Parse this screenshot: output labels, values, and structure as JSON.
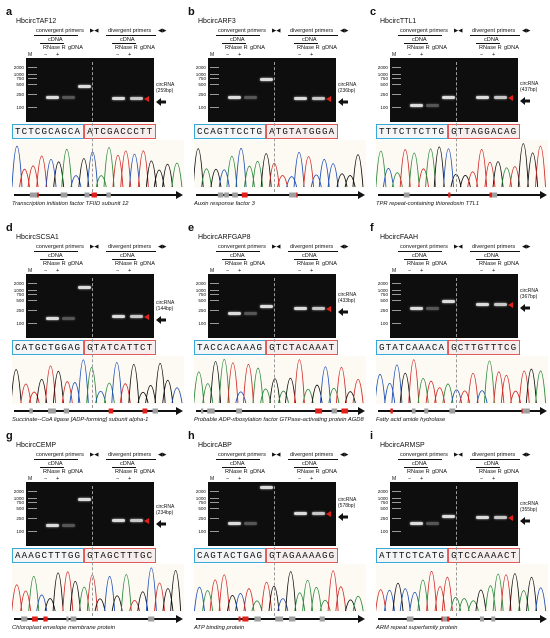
{
  "colors": {
    "accent_red": "#e0201b",
    "box_blue": "#3aa7d5",
    "box_red": "#e05a5a"
  },
  "headers": {
    "convergent": "convergent primers",
    "divergent": "divergent primers",
    "cdna": "cDNA",
    "rnase": "RNase R",
    "gdna": "gDNA",
    "minus": "−",
    "plus": "+",
    "marker": "M"
  },
  "ladder_marks": [
    "2000",
    "1000",
    "750",
    "500",
    "250",
    "100"
  ],
  "panels": [
    {
      "letter": "a",
      "gene": "HbcircTAF12",
      "circ1": "circRNA",
      "circ2": "(259bp)",
      "seq_left": "TCTCGCAGCA",
      "seq_right": "ATCGACCCTT",
      "description": "Transcription initiation factor TFIID subunit 12"
    },
    {
      "letter": "b",
      "gene": "HbcircARF3",
      "circ1": "circRNA",
      "circ2": "(236bp)",
      "seq_left": "CCAGTTCCTG",
      "seq_right": "ATGTATGGGA",
      "description": "Auxin response factor 3"
    },
    {
      "letter": "c",
      "gene": "HbcircTTL1",
      "circ1": "circRNA",
      "circ2": "(437bp)",
      "seq_left": "TTTCTTCTTG",
      "seq_right": "GTTAGGACAG",
      "description": "TPR repeat-containing thioredoxin TTL1"
    },
    {
      "letter": "d",
      "gene": "HbcircSCSA1",
      "circ1": "circRNA",
      "circ2": "(144bp)",
      "seq_left": "CATGCTGGAG",
      "seq_right": "GTATCATTCT",
      "description": "Succinate--CoA ligase [ADP-forming] subunit alpha-1"
    },
    {
      "letter": "e",
      "gene": "HbcircARFGAP8",
      "circ1": "circRNA",
      "circ2": "(433bp)",
      "seq_left": "TACCACAAAG",
      "seq_right": "GTCTACAAAT",
      "description": "Probable ADP-ribosylation factor GTPase-activating protein AGD8"
    },
    {
      "letter": "f",
      "gene": "HbcircFAAH",
      "circ1": "circRNA",
      "circ2": "(367bp)",
      "seq_left": "GTATCAAACA",
      "seq_right": "GCTTGTTTCG",
      "description": "Fatty acid amide hydrolase"
    },
    {
      "letter": "g",
      "gene": "HbcircCEMP",
      "circ1": "circRNA",
      "circ2": "(234bp)",
      "seq_left": "AAAGCTTTGG",
      "seq_right": "GTAGCTTTGC",
      "description": "Chloroplast envelope membrane protein"
    },
    {
      "letter": "h",
      "gene": "HbcircABP",
      "circ1": "circRNA",
      "circ2": "(578bp)",
      "seq_left": "CAGTACTGAG",
      "seq_right": "GTAGAAAAGG",
      "description": "ATP binding protein"
    },
    {
      "letter": "i",
      "gene": "HbcircARMSP",
      "circ1": "circRNA",
      "circ2": "(355bp)",
      "seq_left": "ATTTCTCATG",
      "seq_right": "GTCCAAAACT",
      "description": "ARM repeat superfamily protein"
    }
  ]
}
